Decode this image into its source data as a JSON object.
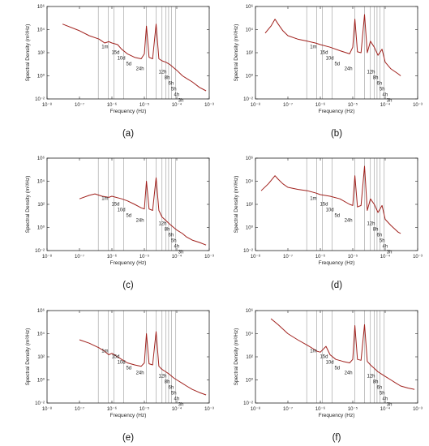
{
  "chart_data": [
    {
      "panel_label": "(a)",
      "type": "line",
      "xlabel": "Frequency (Hz)",
      "ylabel": "Spectral Density (m²/Hz)",
      "xlim": [
        1e-08,
        0.001
      ],
      "ylim": [
        0.01,
        1000000
      ],
      "xscale": "log",
      "yscale": "log",
      "x_tick_labels": [
        "10⁻⁸",
        "10⁻⁷",
        "10⁻⁶",
        "10⁻⁵",
        "10⁻⁴",
        "10⁻³"
      ],
      "y_tick_labels": [
        "10⁻²",
        "10⁰",
        "10²",
        "10⁴",
        "10⁶"
      ],
      "period_markers": [
        {
          "label": "1m",
          "freq": 3.8e-07
        },
        {
          "label": "15d",
          "freq": 7.7e-07
        },
        {
          "label": "10d",
          "freq": 1.16e-06
        },
        {
          "label": "5d",
          "freq": 2.3e-06
        },
        {
          "label": "24h",
          "freq": 1.16e-05
        },
        {
          "label": "12h",
          "freq": 2.3e-05
        },
        {
          "label": "8h",
          "freq": 3.5e-05
        },
        {
          "label": "6h",
          "freq": 4.6e-05
        },
        {
          "label": "5h",
          "freq": 5.6e-05
        },
        {
          "label": "4h",
          "freq": 6.9e-05
        },
        {
          "label": "3h",
          "freq": 9.3e-05
        }
      ],
      "series": [
        {
          "color": "#a0201c",
          "x": [
            3e-08,
            1e-07,
            2e-07,
            4e-07,
            6e-07,
            8e-07,
            1e-06,
            1.5e-06,
            2e-06,
            3e-06,
            5e-06,
            8e-06,
            1e-05,
            1.16e-05,
            1.4e-05,
            1.8e-05,
            2.3e-05,
            2.8e-05,
            3.5e-05,
            4.6e-05,
            6e-05,
            8e-05,
            0.0001,
            0.00015,
            0.0002,
            0.0003,
            0.0005,
            0.0008
          ],
          "y": [
            30000,
            8000,
            3000,
            1500,
            700,
            900,
            700,
            500,
            200,
            80,
            40,
            30,
            80,
            20000,
            40,
            30,
            30000,
            30,
            20,
            15,
            10,
            5,
            3,
            1,
            0.6,
            0.3,
            0.1,
            0.05
          ]
        }
      ]
    },
    {
      "panel_label": "(b)",
      "type": "line",
      "xlabel": "Frequency (Hz)",
      "ylabel": "Spectral Density (m²/Hz)",
      "xlim": [
        1e-08,
        0.001
      ],
      "ylim": [
        0.01,
        1000000
      ],
      "xscale": "log",
      "yscale": "log",
      "x_tick_labels": [
        "10⁻⁸",
        "10⁻⁷",
        "10⁻⁶",
        "10⁻⁵",
        "10⁻⁴",
        "10⁻³"
      ],
      "y_tick_labels": [
        "10⁻²",
        "10⁰",
        "10²",
        "10⁴",
        "10⁶"
      ],
      "period_markers": [
        {
          "label": "1m",
          "freq": 3.8e-07
        },
        {
          "label": "15d",
          "freq": 7.7e-07
        },
        {
          "label": "10d",
          "freq": 1.16e-06
        },
        {
          "label": "5d",
          "freq": 2.3e-06
        },
        {
          "label": "24h",
          "freq": 1.16e-05
        },
        {
          "label": "12h",
          "freq": 2.3e-05
        },
        {
          "label": "8h",
          "freq": 3.5e-05
        },
        {
          "label": "6h",
          "freq": 4.6e-05
        },
        {
          "label": "5h",
          "freq": 5.6e-05
        },
        {
          "label": "4h",
          "freq": 6.9e-05
        },
        {
          "label": "3h",
          "freq": 9.3e-05
        }
      ],
      "series": [
        {
          "color": "#a0201c",
          "x": [
            2e-08,
            3e-08,
            4e-08,
            5e-08,
            7e-08,
            1e-07,
            2e-07,
            4e-07,
            7e-07,
            1e-06,
            2e-06,
            4e-06,
            8e-06,
            1e-05,
            1.16e-05,
            1.4e-05,
            1.8e-05,
            2.3e-05,
            2.8e-05,
            3.5e-05,
            4.6e-05,
            6e-05,
            8e-05,
            0.0001,
            0.00015,
            0.00025,
            0.0003
          ],
          "y": [
            5000,
            20000,
            80000,
            30000,
            8000,
            3000,
            1500,
            1000,
            700,
            500,
            300,
            150,
            80,
            300,
            80000,
            120,
            100,
            200000,
            100,
            1000,
            300,
            60,
            200,
            15,
            4,
            1.5,
            1
          ]
        }
      ]
    },
    {
      "panel_label": "(c)",
      "type": "line",
      "xlabel": "Frequency (Hz)",
      "ylabel": "Spectral Density (m²/Hz)",
      "xlim": [
        1e-08,
        0.001
      ],
      "ylim": [
        0.01,
        1000000
      ],
      "xscale": "log",
      "yscale": "log",
      "x_tick_labels": [
        "10⁻⁸",
        "10⁻⁷",
        "10⁻⁶",
        "10⁻⁵",
        "10⁻⁴",
        "10⁻³"
      ],
      "y_tick_labels": [
        "10⁻²",
        "10⁰",
        "10²",
        "10⁴",
        "10⁶"
      ],
      "period_markers": [
        {
          "label": "1m",
          "freq": 3.8e-07
        },
        {
          "label": "15d",
          "freq": 7.7e-07
        },
        {
          "label": "10d",
          "freq": 1.16e-06
        },
        {
          "label": "5d",
          "freq": 2.3e-06
        },
        {
          "label": "24h",
          "freq": 1.16e-05
        },
        {
          "label": "12h",
          "freq": 2.3e-05
        },
        {
          "label": "8h",
          "freq": 3.5e-05
        },
        {
          "label": "6h",
          "freq": 4.6e-05
        },
        {
          "label": "5h",
          "freq": 5.6e-05
        },
        {
          "label": "4h",
          "freq": 6.9e-05
        },
        {
          "label": "3h",
          "freq": 9.3e-05
        }
      ],
      "series": [
        {
          "color": "#a0201c",
          "x": [
            1e-07,
            2e-07,
            3e-07,
            5e-07,
            8e-07,
            1e-06,
            2e-06,
            3e-06,
            5e-06,
            8e-06,
            1e-05,
            1.16e-05,
            1.4e-05,
            1.8e-05,
            2.3e-05,
            2.8e-05,
            3.5e-05,
            4.6e-05,
            6e-05,
            8e-05,
            0.0001,
            0.00015,
            0.0002,
            0.0003,
            0.0005,
            0.0008
          ],
          "y": [
            300,
            600,
            800,
            500,
            400,
            500,
            300,
            200,
            100,
            50,
            40,
            10000,
            40,
            30,
            20000,
            30,
            8,
            4,
            2,
            1,
            0.6,
            0.3,
            0.15,
            0.08,
            0.05,
            0.03
          ]
        }
      ]
    },
    {
      "panel_label": "(d)",
      "type": "line",
      "xlabel": "Frequency (Hz)",
      "ylabel": "Spectral Density (m²/Hz)",
      "xlim": [
        1e-08,
        0.001
      ],
      "ylim": [
        0.01,
        1000000
      ],
      "xscale": "log",
      "yscale": "log",
      "x_tick_labels": [
        "10⁻⁸",
        "10⁻⁷",
        "10⁻⁶",
        "10⁻⁵",
        "10⁻⁴",
        "10⁻³"
      ],
      "y_tick_labels": [
        "10⁻²",
        "10⁰",
        "10²",
        "10⁴",
        "10⁶"
      ],
      "period_markers": [
        {
          "label": "1m",
          "freq": 3.8e-07
        },
        {
          "label": "15d",
          "freq": 7.7e-07
        },
        {
          "label": "10d",
          "freq": 1.16e-06
        },
        {
          "label": "5d",
          "freq": 2.3e-06
        },
        {
          "label": "24h",
          "freq": 1.16e-05
        },
        {
          "label": "12h",
          "freq": 2.3e-05
        },
        {
          "label": "8h",
          "freq": 3.5e-05
        },
        {
          "label": "6h",
          "freq": 4.6e-05
        },
        {
          "label": "5h",
          "freq": 5.6e-05
        },
        {
          "label": "4h",
          "freq": 6.9e-05
        },
        {
          "label": "3h",
          "freq": 9.3e-05
        }
      ],
      "series": [
        {
          "color": "#a0201c",
          "x": [
            1.5e-08,
            2.5e-08,
            4e-08,
            5e-08,
            7e-08,
            1e-07,
            2e-07,
            4e-07,
            7e-07,
            1e-06,
            2e-06,
            4e-06,
            8e-06,
            1e-05,
            1.16e-05,
            1.4e-05,
            1.8e-05,
            2.3e-05,
            2.8e-05,
            3.5e-05,
            4.6e-05,
            6e-05,
            8e-05,
            0.0001,
            0.00015,
            0.00025,
            0.0003
          ],
          "y": [
            1500,
            6000,
            30000,
            15000,
            6000,
            3000,
            2000,
            1500,
            1000,
            700,
            500,
            300,
            100,
            80,
            30000,
            60,
            80,
            200000,
            30,
            300,
            100,
            20,
            80,
            5,
            1.5,
            0.4,
            0.3
          ]
        }
      ]
    },
    {
      "panel_label": "(e)",
      "type": "line",
      "xlabel": "Frequency (Hz)",
      "ylabel": "Spectral Density (m²/Hz)",
      "xlim": [
        1e-08,
        0.001
      ],
      "ylim": [
        0.01,
        1000000
      ],
      "xscale": "log",
      "yscale": "log",
      "x_tick_labels": [
        "10⁻⁸",
        "10⁻⁷",
        "10⁻⁶",
        "10⁻⁵",
        "10⁻⁴",
        "10⁻³"
      ],
      "y_tick_labels": [
        "10⁻²",
        "10⁰",
        "10²",
        "10⁴",
        "10⁶"
      ],
      "period_markers": [
        {
          "label": "1m",
          "freq": 3.8e-07
        },
        {
          "label": "15d",
          "freq": 7.7e-07
        },
        {
          "label": "10d",
          "freq": 1.16e-06
        },
        {
          "label": "5d",
          "freq": 2.3e-06
        },
        {
          "label": "24h",
          "freq": 1.16e-05
        },
        {
          "label": "12h",
          "freq": 2.3e-05
        },
        {
          "label": "8h",
          "freq": 3.5e-05
        },
        {
          "label": "6h",
          "freq": 4.6e-05
        },
        {
          "label": "5h",
          "freq": 5.6e-05
        },
        {
          "label": "4h",
          "freq": 6.9e-05
        },
        {
          "label": "3h",
          "freq": 9.3e-05
        }
      ],
      "series": [
        {
          "color": "#a0201c",
          "x": [
            1e-07,
            2e-07,
            4e-07,
            6e-07,
            8e-07,
            1e-06,
            1.5e-06,
            2e-06,
            3e-06,
            5e-06,
            8e-06,
            1e-05,
            1.16e-05,
            1.4e-05,
            1.8e-05,
            2.3e-05,
            2.8e-05,
            3.5e-05,
            4.6e-05,
            6e-05,
            8e-05,
            0.0001,
            0.00015,
            0.0002,
            0.0003,
            0.0005,
            0.0008
          ],
          "y": [
            3000,
            1500,
            600,
            300,
            150,
            200,
            100,
            60,
            30,
            20,
            15,
            30,
            10000,
            25,
            20,
            15000,
            15,
            8,
            5,
            3,
            1.5,
            1,
            0.5,
            0.3,
            0.15,
            0.08,
            0.05
          ]
        }
      ]
    },
    {
      "panel_label": "(f)",
      "type": "line",
      "xlabel": "Frequency (Hz)",
      "ylabel": "Spectral Density (m²/Hz)",
      "xlim": [
        1e-08,
        0.001
      ],
      "ylim": [
        0.01,
        1000000
      ],
      "xscale": "log",
      "yscale": "log",
      "x_tick_labels": [
        "10⁻⁸",
        "10⁻⁷",
        "10⁻⁶",
        "10⁻⁵",
        "10⁻⁴",
        "10⁻³"
      ],
      "y_tick_labels": [
        "10⁻²",
        "10⁰",
        "10²",
        "10⁴",
        "10⁶"
      ],
      "period_markers": [
        {
          "label": "1m",
          "freq": 3.8e-07
        },
        {
          "label": "15d",
          "freq": 7.7e-07
        },
        {
          "label": "10d",
          "freq": 1.16e-06
        },
        {
          "label": "5d",
          "freq": 2.3e-06
        },
        {
          "label": "24h",
          "freq": 1.16e-05
        },
        {
          "label": "12h",
          "freq": 2.3e-05
        },
        {
          "label": "8h",
          "freq": 3.5e-05
        },
        {
          "label": "6h",
          "freq": 4.6e-05
        },
        {
          "label": "5h",
          "freq": 5.6e-05
        },
        {
          "label": "4h",
          "freq": 6.9e-05
        },
        {
          "label": "3h",
          "freq": 9.3e-05
        }
      ],
      "series": [
        {
          "color": "#a0201c",
          "x": [
            3e-08,
            5e-08,
            1e-07,
            2e-07,
            4e-07,
            6e-07,
            8e-07,
            1e-06,
            1.5e-06,
            2e-06,
            3e-06,
            5e-06,
            8e-06,
            1e-05,
            1.16e-05,
            1.4e-05,
            1.8e-05,
            2.3e-05,
            2.8e-05,
            3.5e-05,
            4.6e-05,
            6e-05,
            8e-05,
            0.0001,
            0.00015,
            0.0002,
            0.0003,
            0.0005,
            0.0008
          ],
          "y": [
            200000,
            60000,
            10000,
            3000,
            1000,
            500,
            300,
            250,
            800,
            150,
            60,
            40,
            30,
            60,
            50000,
            60,
            50,
            60000,
            40,
            20,
            10,
            5,
            3,
            2,
            1,
            0.6,
            0.3,
            0.2,
            0.15
          ]
        }
      ]
    }
  ]
}
